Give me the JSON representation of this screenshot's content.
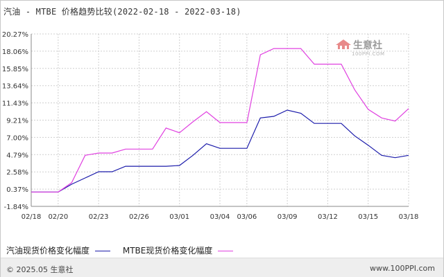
{
  "title": "汽油 - MTBE 价格趋势比较(2022-02-18 - 2022-03-18)",
  "watermark": {
    "brand": "生意社",
    "url": "100PPI.COM"
  },
  "footer": {
    "left": "© 2025.05 生意社",
    "right": "www.100PPI.com"
  },
  "colors": {
    "gasoline": "#1a1aaa",
    "mtbe": "#e040e0",
    "grid": "#cfcfcf",
    "axis": "#888888"
  },
  "chart_data": {
    "type": "line",
    "title": "汽油 - MTBE 价格趋势比较(2022-02-18 - 2022-03-18)",
    "xlabel": "",
    "ylabel": "",
    "ylim": [
      -1.84,
      20.27
    ],
    "yticks": [
      "20.27%",
      "18.06%",
      "15.85%",
      "13.64%",
      "11.43%",
      "9.21%",
      "7.00%",
      "4.79%",
      "2.58%",
      "0.37%",
      "-1.84%"
    ],
    "xticks": [
      "02/18",
      "02/20",
      "02/23",
      "02/26",
      "03/01",
      "03/04",
      "03/06",
      "03/09",
      "03/12",
      "03/15",
      "03/18"
    ],
    "grid": true,
    "legend_position": "bottom",
    "x": [
      "02/18",
      "02/19",
      "02/20",
      "02/21",
      "02/22",
      "02/23",
      "02/24",
      "02/25",
      "02/26",
      "02/27",
      "02/28",
      "03/01",
      "03/02",
      "03/03",
      "03/04",
      "03/05",
      "03/06",
      "03/07",
      "03/08",
      "03/09",
      "03/10",
      "03/11",
      "03/12",
      "03/13",
      "03/14",
      "03/15",
      "03/16",
      "03/17",
      "03/18"
    ],
    "series": [
      {
        "name": "汽油现货价格变化幅度",
        "color": "#1a1aaa",
        "values": [
          0.0,
          0.0,
          0.0,
          1.0,
          1.8,
          2.6,
          2.6,
          3.3,
          3.3,
          3.3,
          3.3,
          3.4,
          4.7,
          6.2,
          5.6,
          5.6,
          5.6,
          9.5,
          9.7,
          10.5,
          10.1,
          8.8,
          8.8,
          8.8,
          7.2,
          6.0,
          4.7,
          4.4,
          4.7
        ]
      },
      {
        "name": "MTBE现货价格变化幅度",
        "color": "#e040e0",
        "values": [
          0.0,
          0.0,
          0.0,
          1.2,
          4.7,
          5.0,
          5.0,
          5.5,
          5.5,
          5.5,
          8.2,
          7.6,
          9.0,
          10.3,
          8.9,
          8.9,
          8.9,
          17.6,
          18.4,
          18.4,
          18.4,
          16.4,
          16.4,
          16.4,
          13.1,
          10.6,
          9.5,
          9.1,
          10.7
        ]
      }
    ]
  }
}
